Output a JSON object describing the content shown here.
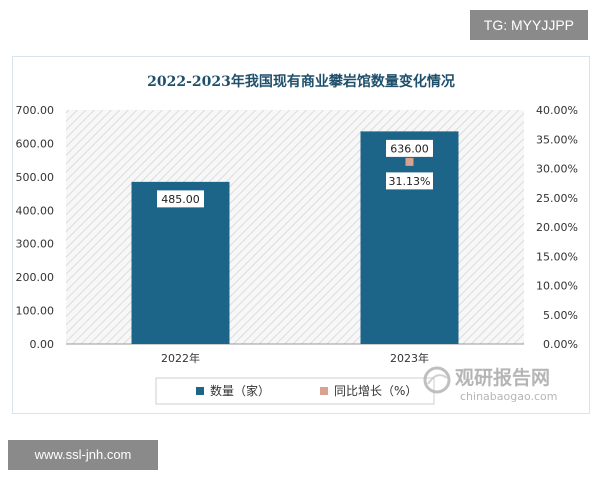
{
  "tag": "TG: MYYJJPP",
  "site_badge": "www.ssl-jnh.com",
  "watermark": {
    "name": "观研报告网",
    "url": "chinabaogao.com"
  },
  "colors": {
    "bar": "#1c6488",
    "marker": "#d9a190",
    "title": "#1f4f6b"
  },
  "chart_data": {
    "type": "bar",
    "title": "2022-2023年我国现有商业攀岩馆数量变化情况",
    "categories": [
      "2022年",
      "2023年"
    ],
    "series": [
      {
        "name": "数量（家）",
        "type": "bar",
        "axis": "left",
        "values": [
          485.0,
          636.0
        ],
        "labels": [
          "485.00",
          "636.00"
        ]
      },
      {
        "name": "同比增长（%）",
        "type": "scatter",
        "axis": "right",
        "values": [
          null,
          31.13
        ],
        "labels": [
          "",
          "31.13%"
        ]
      }
    ],
    "ylim": [
      0,
      700
    ],
    "yticks": [
      "0.00",
      "100.00",
      "200.00",
      "300.00",
      "400.00",
      "500.00",
      "600.00",
      "700.00"
    ],
    "y2lim": [
      0,
      40
    ],
    "y2ticks": [
      "0.00%",
      "5.00%",
      "10.00%",
      "15.00%",
      "20.00%",
      "25.00%",
      "30.00%",
      "35.00%",
      "40.00%"
    ],
    "legend_position": "bottom",
    "grid": false
  }
}
